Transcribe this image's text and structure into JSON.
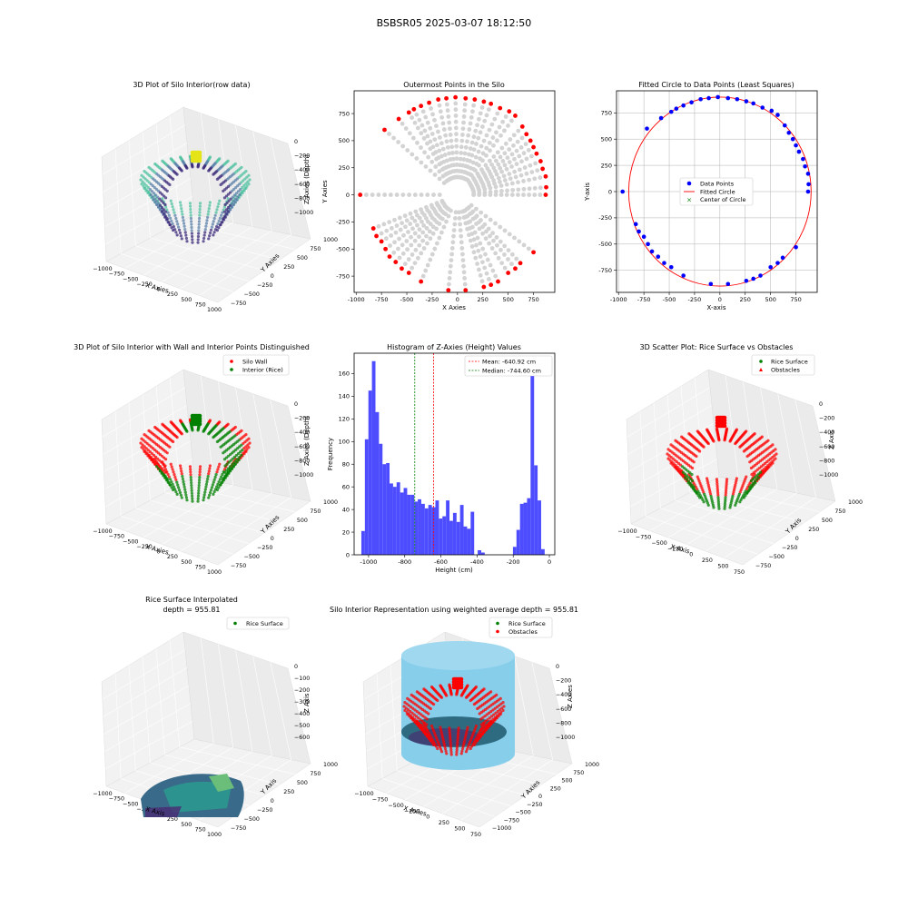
{
  "figure_title": "BSBSR05 2025-03-07 18:12:50",
  "colors": {
    "wall": "#ff0000",
    "rice": "#008000",
    "gray": "#d3d3d3",
    "blue": "#0000ff",
    "hist": "#4d4dff",
    "cyl": "#87ceeb"
  },
  "panels3d": {
    "p1": {
      "title": "3D Plot of Silo Interior(row data)",
      "xlabel": "X Axies",
      "ylabel": "Y Axies",
      "zlabel": "Z Axies (Depth)",
      "xticks": [
        "−1000",
        "−750",
        "−500",
        "−250",
        "0",
        "250",
        "500",
        "750",
        "1000"
      ],
      "yticks": [
        "−750",
        "−500",
        "−250",
        "0",
        "250",
        "500",
        "750",
        "1000"
      ],
      "zticks": [
        "0",
        "−200",
        "−400",
        "−600",
        "−800",
        "−1000"
      ]
    },
    "p4": {
      "title": "3D Plot of Silo Interior with Wall and Interior Points Distinguished",
      "xlabel": "X Axies",
      "ylabel": "Y Axies",
      "zlabel": "Z Axies (Depth)",
      "xticks": [
        "−1000",
        "−750",
        "−500",
        "−250",
        "0",
        "250",
        "500",
        "750",
        "1000"
      ],
      "yticks": [
        "−750",
        "−500",
        "−250",
        "0",
        "250",
        "500",
        "750",
        "1000"
      ],
      "zticks": [
        "0",
        "−200",
        "−400",
        "−600",
        "−800",
        "−1000"
      ],
      "legend": [
        "Silo Wall",
        "Interior (Rice)"
      ]
    },
    "p6": {
      "title": "3D Scatter Plot: Rice Surface vs Obstacles",
      "xlabel": "X Axis",
      "ylabel": "Y Axis",
      "zlabel": "Z Axis",
      "xticks": [
        "−1000",
        "−750",
        "−500",
        "−250",
        "0",
        "250",
        "500",
        "750"
      ],
      "yticks": [
        "−750",
        "−500",
        "−250",
        "0",
        "250",
        "500",
        "750",
        "1000"
      ],
      "zticks": [
        "0",
        "−200",
        "−400",
        "−600",
        "−800",
        "−1000"
      ],
      "legend": [
        "Rice Surface",
        "Obstacles"
      ]
    },
    "p7": {
      "title": "Rice Surface Interpolated",
      "subtitle": "depth = 955.81",
      "xlabel": "X Axis",
      "ylabel": "Y Axis",
      "zlabel": "Z Axis",
      "xticks": [
        "−1000",
        "−750",
        "−500",
        "−250",
        "0",
        "250",
        "500",
        "750",
        "1000"
      ],
      "yticks": [
        "−750",
        "−500",
        "−250",
        "0",
        "250",
        "500",
        "750",
        "1000"
      ],
      "zticks": [
        "0",
        "−100",
        "−200",
        "−300",
        "−400",
        "−500",
        "−600"
      ],
      "legend": [
        "Rice Surface"
      ]
    },
    "p8": {
      "title": "Silo Interior Representation using weighted average depth = 955.81",
      "xlabel": "X Axies",
      "ylabel": "Y Axies",
      "zlabel": "Z Axies",
      "xticks": [
        "−1000",
        "−750",
        "−500",
        "−250",
        "0",
        "250",
        "500",
        "750"
      ],
      "yticks": [
        "−1000",
        "−750",
        "−500",
        "−250",
        "0",
        "250",
        "500",
        "750",
        "1000"
      ],
      "zticks": [
        "0",
        "−200",
        "−400",
        "−600",
        "−800",
        "−1000"
      ],
      "legend": [
        "Rice Surface",
        "Obstacles"
      ]
    }
  },
  "chart_data": [
    {
      "type": "scatter",
      "title": "Outermost Points in the Silo",
      "xlabel": "X Axies",
      "ylabel": "Y Axies",
      "xlim": [
        -1020,
        960
      ],
      "ylim": [
        -900,
        960
      ],
      "xticks": [
        -1000,
        -750,
        -500,
        -250,
        0,
        250,
        500,
        750
      ],
      "yticks": [
        -750,
        -500,
        -250,
        0,
        250,
        500,
        750
      ],
      "grid": false,
      "series": [
        {
          "color": "#ff0000",
          "role": "outermost",
          "points": [
            [
              -960,
              0
            ],
            [
              -720,
              600
            ],
            [
              -580,
              700
            ],
            [
              -480,
              760
            ],
            [
              -430,
              790
            ],
            [
              -360,
              820
            ],
            [
              -280,
              850
            ],
            [
              -190,
              880
            ],
            [
              -110,
              890
            ],
            [
              -20,
              900
            ],
            [
              80,
              890
            ],
            [
              170,
              880
            ],
            [
              260,
              860
            ],
            [
              330,
              840
            ],
            [
              420,
              800
            ],
            [
              510,
              770
            ],
            [
              570,
              730
            ],
            [
              640,
              630
            ],
            [
              680,
              560
            ],
            [
              720,
              500
            ],
            [
              750,
              440
            ],
            [
              780,
              380
            ],
            [
              820,
              310
            ],
            [
              840,
              240
            ],
            [
              870,
              170
            ],
            [
              875,
              70
            ],
            [
              870,
              0
            ],
            [
              -830,
              -310
            ],
            [
              -800,
              -380
            ],
            [
              -750,
              -430
            ],
            [
              -710,
              -500
            ],
            [
              -670,
              -570
            ],
            [
              -610,
              -620
            ],
            [
              -550,
              -680
            ],
            [
              -480,
              -720
            ],
            [
              -360,
              -800
            ],
            [
              -90,
              -880
            ],
            [
              80,
              -880
            ],
            [
              260,
              -850
            ],
            [
              330,
              -830
            ],
            [
              400,
              -800
            ],
            [
              500,
              -720
            ],
            [
              570,
              -680
            ],
            [
              620,
              -630
            ],
            [
              750,
              -530
            ]
          ]
        }
      ]
    },
    {
      "type": "scatter",
      "title": "Fitted Circle to Data Points (Least Squares)",
      "xlabel": "X-axis",
      "ylabel": "Y-axis",
      "xlim": [
        -1020,
        960
      ],
      "ylim": [
        -960,
        960
      ],
      "xticks": [
        -1000,
        -750,
        -500,
        -250,
        0,
        250,
        500,
        750
      ],
      "yticks": [
        -750,
        -500,
        -250,
        0,
        250,
        500,
        750
      ],
      "grid": true,
      "legend": [
        "Data Points",
        "Fitted Circle",
        "Center of Circle"
      ],
      "circle": {
        "cx": 0,
        "cy": 0,
        "r": 900
      },
      "center": [
        0,
        0
      ],
      "points": [
        [
          -960,
          0
        ],
        [
          -720,
          600
        ],
        [
          -580,
          700
        ],
        [
          -480,
          760
        ],
        [
          -430,
          790
        ],
        [
          -360,
          820
        ],
        [
          -280,
          850
        ],
        [
          -190,
          880
        ],
        [
          -110,
          890
        ],
        [
          -20,
          900
        ],
        [
          80,
          890
        ],
        [
          170,
          880
        ],
        [
          260,
          860
        ],
        [
          330,
          840
        ],
        [
          420,
          800
        ],
        [
          510,
          770
        ],
        [
          570,
          730
        ],
        [
          640,
          630
        ],
        [
          680,
          560
        ],
        [
          720,
          500
        ],
        [
          750,
          440
        ],
        [
          780,
          380
        ],
        [
          820,
          310
        ],
        [
          840,
          240
        ],
        [
          870,
          170
        ],
        [
          875,
          70
        ],
        [
          870,
          0
        ],
        [
          -830,
          -310
        ],
        [
          -800,
          -380
        ],
        [
          -750,
          -430
        ],
        [
          -710,
          -500
        ],
        [
          -670,
          -570
        ],
        [
          -610,
          -620
        ],
        [
          -550,
          -680
        ],
        [
          -480,
          -720
        ],
        [
          -360,
          -800
        ],
        [
          -90,
          -880
        ],
        [
          80,
          -880
        ],
        [
          260,
          -850
        ],
        [
          330,
          -830
        ],
        [
          400,
          -800
        ],
        [
          500,
          -720
        ],
        [
          570,
          -680
        ],
        [
          620,
          -630
        ],
        [
          750,
          -530
        ]
      ]
    },
    {
      "type": "bar",
      "title": "Histogram of Z-Axies (Height) Values",
      "xlabel": "Height (cm)",
      "ylabel": "Frequency",
      "xlim": [
        -1080,
        30
      ],
      "ylim": [
        0,
        178
      ],
      "xticks": [
        -1000,
        -800,
        -600,
        -400,
        -200,
        0
      ],
      "yticks": [
        0,
        20,
        40,
        60,
        80,
        100,
        120,
        140,
        160
      ],
      "bin_start": -1040,
      "bin_width": 19.5,
      "values": [
        21,
        102,
        145,
        171,
        126,
        98,
        80,
        81,
        63,
        60,
        64,
        55,
        59,
        53,
        53,
        47,
        49,
        45,
        41,
        44,
        42,
        48,
        32,
        34,
        48,
        30,
        37,
        29,
        44,
        25,
        23,
        38,
        0,
        4,
        2,
        0,
        0,
        0,
        0,
        0,
        0,
        0,
        0,
        7,
        22,
        45,
        46,
        50,
        160,
        79,
        48,
        5
      ],
      "mean": -640.92,
      "median": -744.6,
      "legend": [
        "Mean: -640.92 cm",
        "Median: -744.60 cm"
      ]
    }
  ]
}
